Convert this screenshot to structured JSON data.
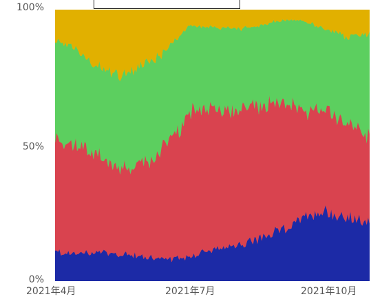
{
  "chart_data": {
    "type": "area",
    "stacked": true,
    "normalized": true,
    "x_start": "2021-04-01",
    "x_end": "2021-10-31",
    "x_ticks": [
      "2021年4月",
      "2021年7月",
      "2021年10月"
    ],
    "y_ticks": [
      "0%",
      "50%",
      "100%"
    ],
    "ylim": [
      0,
      100
    ],
    "grid": false,
    "legend": "top, mostly obscured",
    "series": [
      {
        "color": "#1c2aa6",
        "checkpoints_x": [
          "2021-04-01",
          "2021-04-15",
          "2021-05-01",
          "2021-05-15",
          "2021-06-01",
          "2021-06-15",
          "2021-07-01",
          "2021-07-15",
          "2021-08-01",
          "2021-08-15",
          "2021-09-01",
          "2021-09-15",
          "2021-10-01",
          "2021-10-15",
          "2021-10-31"
        ],
        "values": [
          11,
          10,
          11,
          10,
          9,
          8,
          9,
          11,
          13,
          15,
          19,
          23,
          26,
          23,
          22
        ]
      },
      {
        "color": "#d9434f",
        "checkpoints_x": [
          "2021-04-01",
          "2021-04-15",
          "2021-05-01",
          "2021-05-15",
          "2021-06-01",
          "2021-06-15",
          "2021-07-01",
          "2021-07-15",
          "2021-08-01",
          "2021-08-15",
          "2021-09-01",
          "2021-09-15",
          "2021-10-01",
          "2021-10-15",
          "2021-10-31"
        ],
        "values": [
          42,
          40,
          35,
          32,
          34,
          42,
          53,
          53,
          51,
          50,
          47,
          41,
          37,
          35,
          32
        ]
      },
      {
        "color": "#5ccf5f",
        "checkpoints_x": [
          "2021-04-01",
          "2021-04-15",
          "2021-05-01",
          "2021-05-15",
          "2021-06-01",
          "2021-06-15",
          "2021-07-01",
          "2021-07-15",
          "2021-08-01",
          "2021-08-15",
          "2021-09-01",
          "2021-09-15",
          "2021-10-01",
          "2021-10-15",
          "2021-10-31"
        ],
        "values": [
          36,
          35,
          33,
          34,
          37,
          35,
          32,
          30,
          29,
          29,
          30,
          32,
          30,
          32,
          37
        ]
      },
      {
        "color": "#e1b000",
        "checkpoints_x": [
          "2021-04-01",
          "2021-04-15",
          "2021-05-01",
          "2021-05-15",
          "2021-06-01",
          "2021-06-15",
          "2021-07-01",
          "2021-07-15",
          "2021-08-01",
          "2021-08-15",
          "2021-09-01",
          "2021-09-15",
          "2021-10-01",
          "2021-10-15",
          "2021-10-31"
        ],
        "values": [
          11,
          15,
          21,
          24,
          20,
          15,
          6,
          6,
          7,
          6,
          4,
          4,
          7,
          10,
          9
        ]
      }
    ]
  }
}
